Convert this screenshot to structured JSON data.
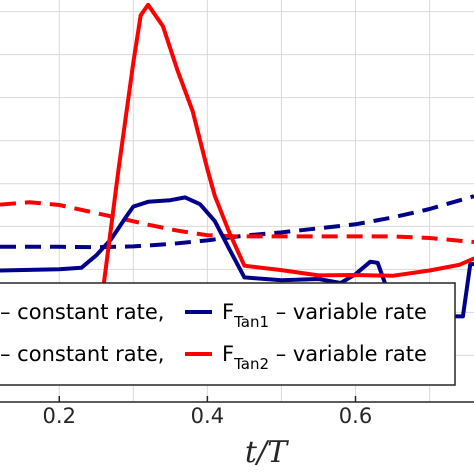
{
  "chart_data": {
    "type": "line",
    "xlabel": "t/T",
    "x_ticks": [
      0.2,
      0.4,
      0.6
    ],
    "xlim": [
      0.12,
      0.76
    ],
    "ylim": [
      0,
      1
    ],
    "grid": true,
    "legend_placement": "bottom",
    "series": [
      {
        "key": "tan1_constant",
        "color": "#00008b",
        "dash": true,
        "x": [
          0.12,
          0.2,
          0.25,
          0.3,
          0.35,
          0.4,
          0.45,
          0.5,
          0.55,
          0.6,
          0.65,
          0.7,
          0.76
        ],
        "y": [
          0.386,
          0.386,
          0.385,
          0.387,
          0.393,
          0.402,
          0.414,
          0.422,
          0.432,
          0.442,
          0.459,
          0.48,
          0.512
        ]
      },
      {
        "key": "tan2_constant",
        "color": "#ff0000",
        "dash": true,
        "x": [
          0.12,
          0.16,
          0.2,
          0.24,
          0.28,
          0.32,
          0.36,
          0.4,
          0.44,
          0.5,
          0.55,
          0.6,
          0.65,
          0.7,
          0.76
        ],
        "y": [
          0.491,
          0.497,
          0.49,
          0.474,
          0.458,
          0.441,
          0.426,
          0.415,
          0.412,
          0.412,
          0.412,
          0.412,
          0.412,
          0.408,
          0.398
        ]
      },
      {
        "key": "tan1_variable",
        "color": "#00008b",
        "dash": false,
        "label_prefix": "F",
        "label_sub": "Tan1",
        "label_suffix": " – variable rate",
        "x": [
          0.12,
          0.2,
          0.23,
          0.25,
          0.27,
          0.29,
          0.3,
          0.32,
          0.35,
          0.37,
          0.39,
          0.41,
          0.43,
          0.45,
          0.5,
          0.55,
          0.58,
          0.6,
          0.62,
          0.63,
          0.64,
          0.65,
          0.7,
          0.745,
          0.755,
          0.76
        ],
        "y": [
          0.327,
          0.33,
          0.334,
          0.365,
          0.405,
          0.46,
          0.486,
          0.498,
          0.502,
          0.509,
          0.492,
          0.45,
          0.379,
          0.31,
          0.303,
          0.306,
          0.296,
          0.318,
          0.349,
          0.346,
          0.295,
          0.219,
          0.214,
          0.213,
          0.343,
          0.343
        ]
      },
      {
        "key": "tan2_variable",
        "color": "#ff0000",
        "dash": false,
        "label_prefix": "F",
        "label_sub": "Tan2",
        "label_suffix": " – variable rate",
        "x": [
          0.12,
          0.16,
          0.2,
          0.245,
          0.25,
          0.26,
          0.28,
          0.3,
          0.31,
          0.32,
          0.34,
          0.36,
          0.38,
          0.4,
          0.41,
          0.43,
          0.45,
          0.5,
          0.55,
          0.6,
          0.65,
          0.7,
          0.74,
          0.76
        ],
        "y": [
          0.176,
          0.173,
          0.166,
          0.148,
          0.164,
          0.292,
          0.578,
          0.844,
          0.962,
          0.988,
          0.935,
          0.823,
          0.724,
          0.579,
          0.513,
          0.42,
          0.339,
          0.328,
          0.315,
          0.316,
          0.314,
          0.327,
          0.341,
          0.357
        ]
      }
    ],
    "legend": [
      {
        "text": "– constant rate,",
        "series": "tan1_constant"
      },
      {
        "text": "– constant rate,",
        "series": "tan2_constant"
      }
    ]
  }
}
